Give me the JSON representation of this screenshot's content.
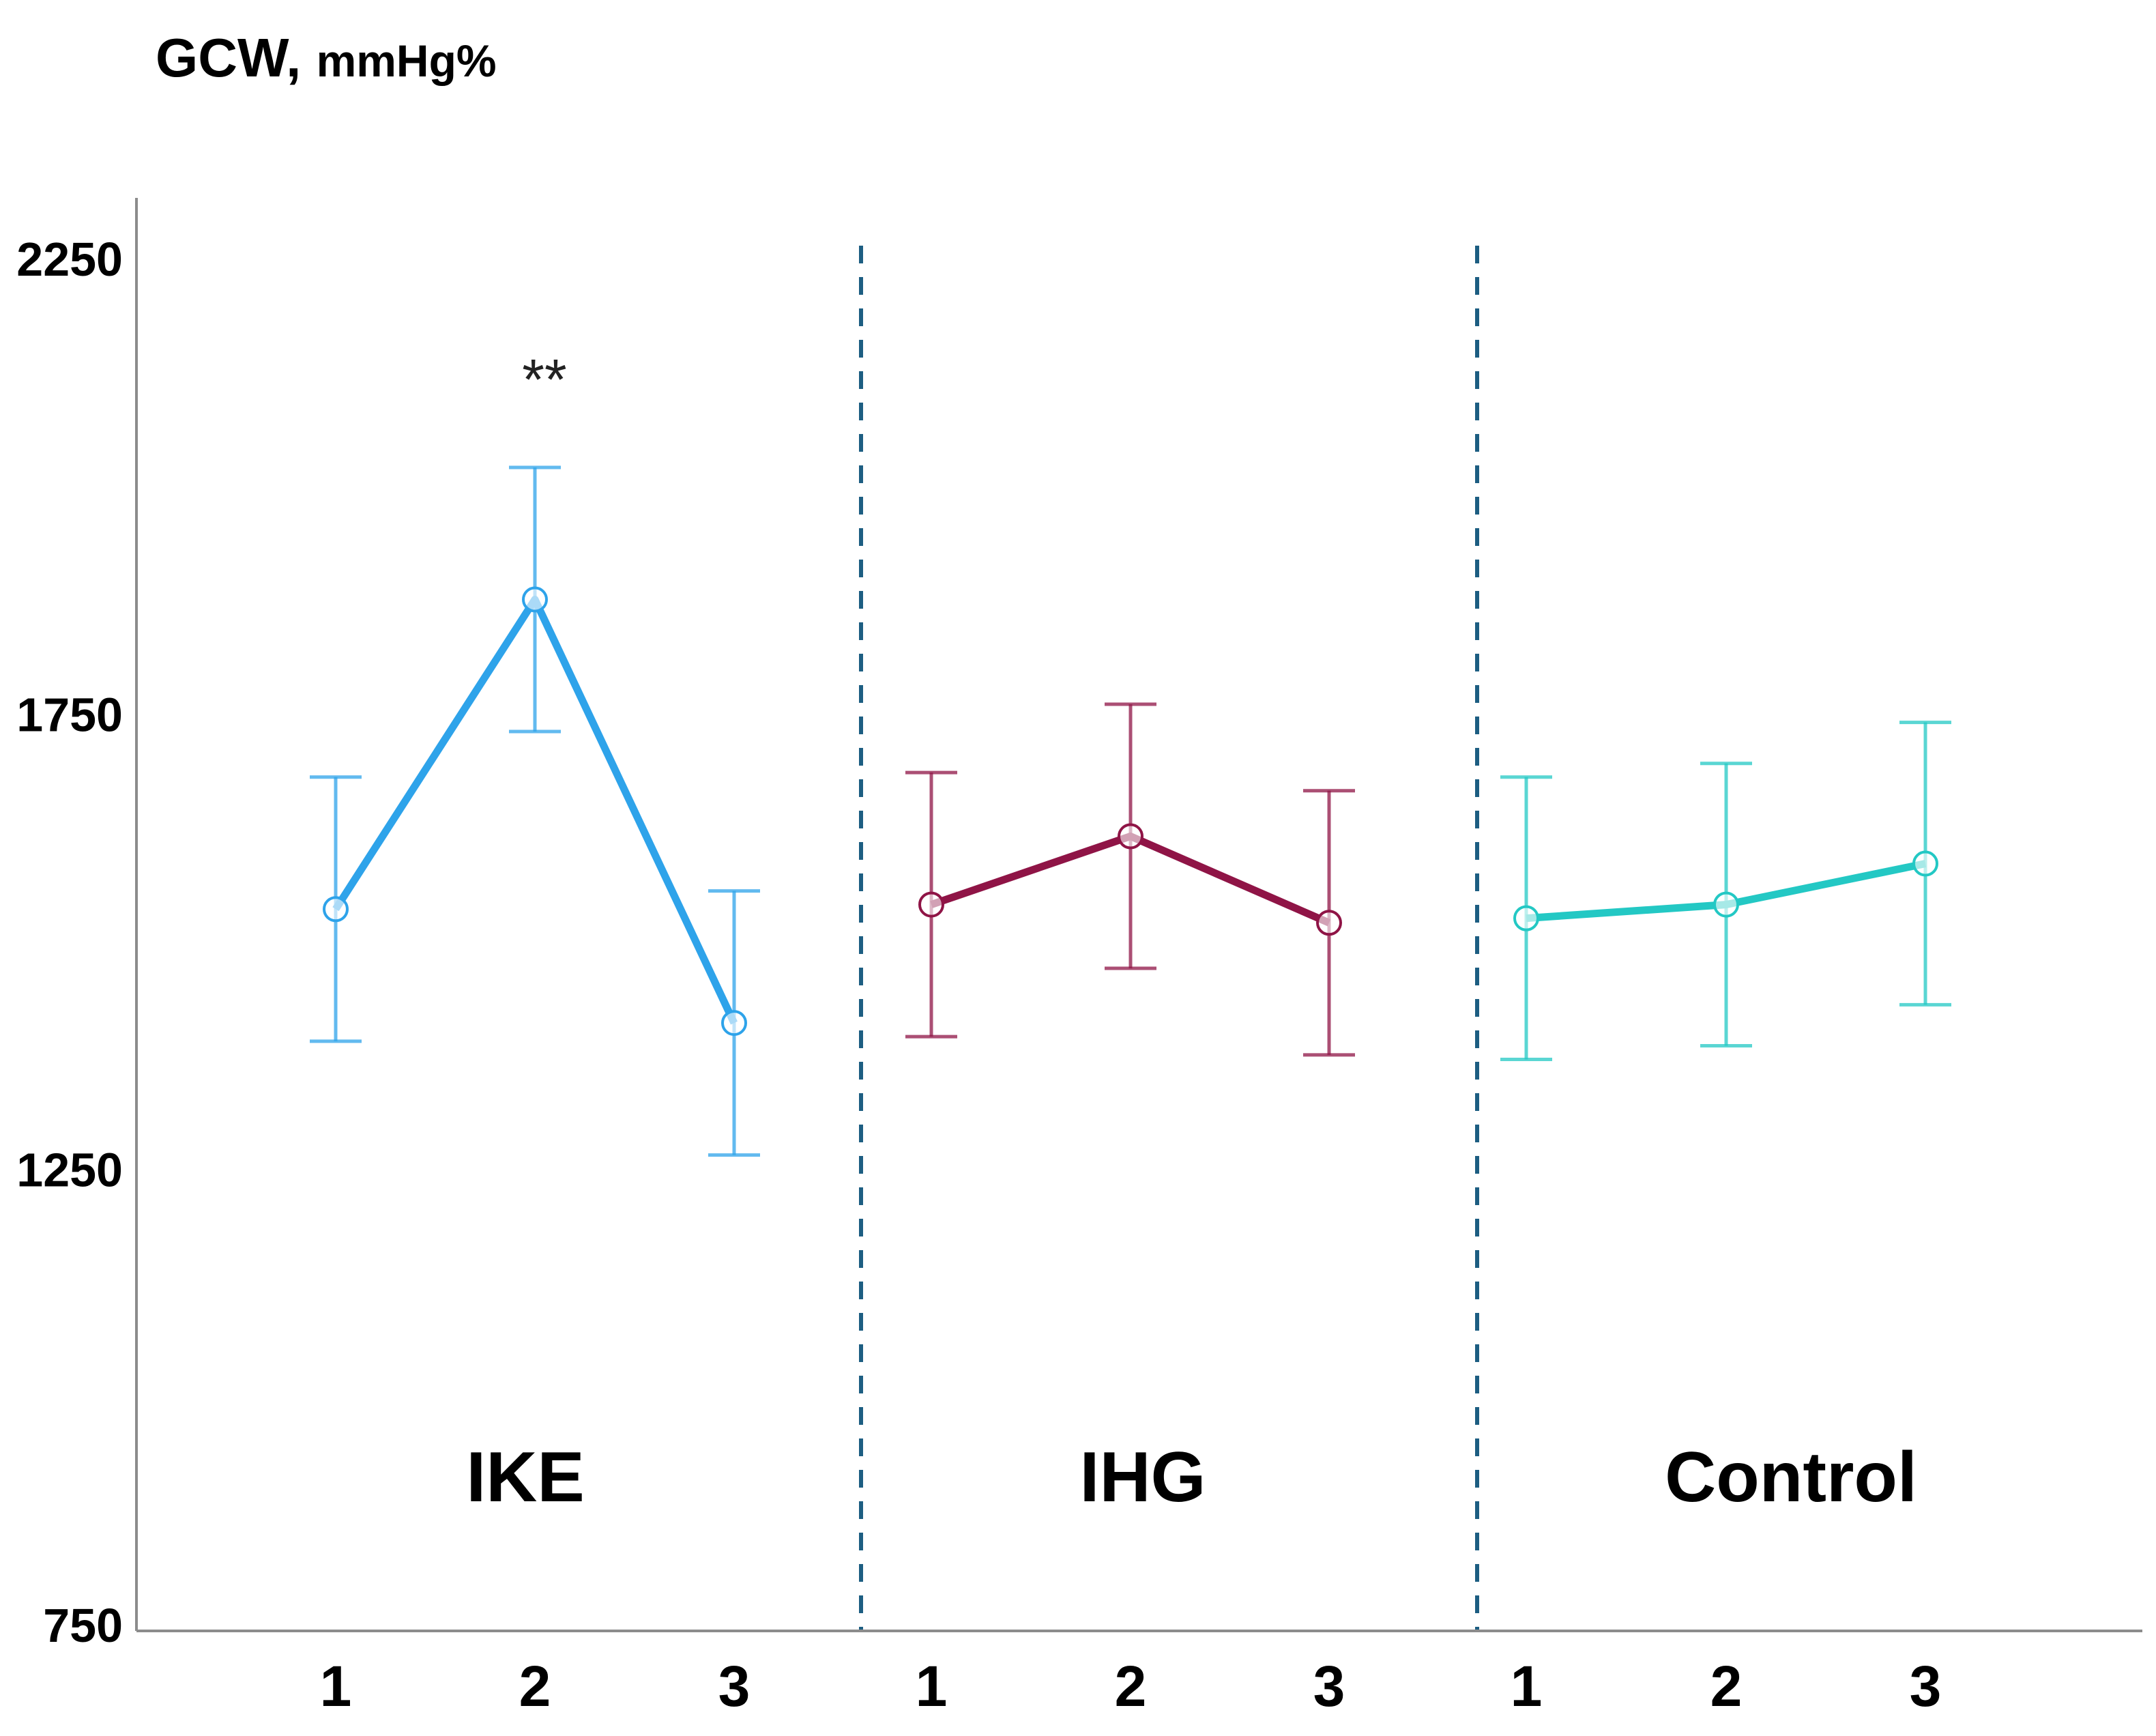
{
  "chart_data": {
    "type": "line",
    "ylabel_main": "GCW,",
    "ylabel_unit": "mmHg%",
    "ylim": [
      750,
      2250
    ],
    "yticks": [
      750,
      1250,
      1750,
      2250
    ],
    "categories": [
      "1",
      "2",
      "3"
    ],
    "series": [
      {
        "name": "IKE",
        "color": "#2ea3ea",
        "values": [
          1535,
          1875,
          1410
        ],
        "error_low": [
          1390,
          1730,
          1265
        ],
        "error_high": [
          1680,
          2020,
          1555
        ]
      },
      {
        "name": "IHG",
        "color": "#8f1446",
        "values": [
          1540,
          1615,
          1520
        ],
        "error_low": [
          1395,
          1470,
          1375
        ],
        "error_high": [
          1685,
          1760,
          1665
        ]
      },
      {
        "name": "Control",
        "color": "#23c8c4",
        "values": [
          1525,
          1540,
          1585
        ],
        "error_low": [
          1370,
          1385,
          1430
        ],
        "error_high": [
          1680,
          1695,
          1740
        ]
      }
    ],
    "annotations": [
      {
        "text": "**",
        "series": "IKE",
        "category": "2"
      }
    ],
    "separator_color": "#1d5e82",
    "grid": false
  }
}
